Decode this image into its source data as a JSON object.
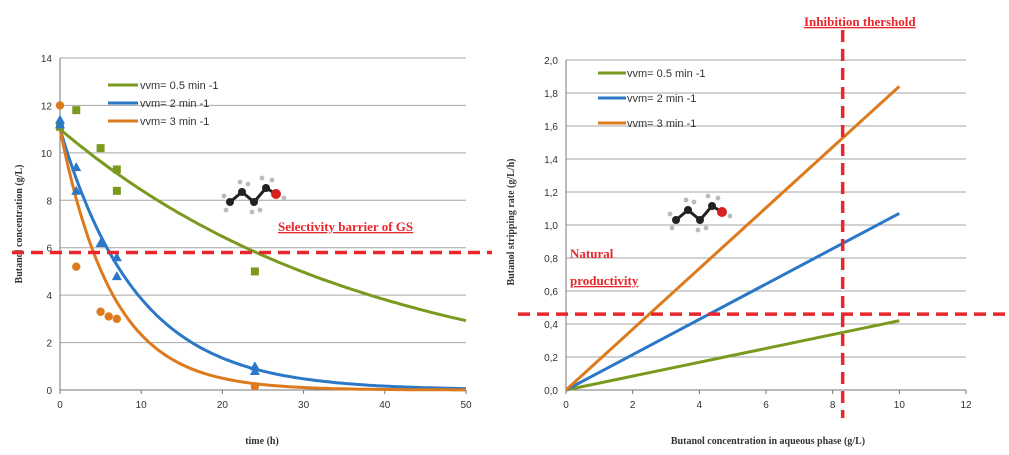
{
  "colors": {
    "series_0_5": "#7a9a1f",
    "series_2": "#2b78c8",
    "series_3": "#dd7a1d",
    "threshold": "#e8262c",
    "grid": "#a6a6a6"
  },
  "annotations": {
    "inhibition": "Inhibition thershold",
    "selectivity": "Selectivity barrier of GS",
    "natural_line1": "Natural",
    "natural_line2": "productivity"
  },
  "chart_data": [
    {
      "type": "scatter",
      "xlabel": "time (h)",
      "ylabel": "Butanol concentration (g/L)",
      "xlim": [
        0,
        50
      ],
      "ylim": [
        0,
        14
      ],
      "xticks": [
        0,
        10,
        20,
        30,
        40,
        50
      ],
      "yticks": [
        0,
        2,
        4,
        6,
        8,
        10,
        12,
        14
      ],
      "grid": "horizontal",
      "legend": "top-left",
      "threshold_y": 5.8,
      "series": [
        {
          "name": "vvm= 0.5 min -1",
          "color_key": "series_0_5",
          "marker": "square",
          "points": [
            [
              0,
              11.1
            ],
            [
              2,
              11.8
            ],
            [
              5,
              10.2
            ],
            [
              7,
              9.3
            ],
            [
              7,
              8.4
            ],
            [
              24,
              5.0
            ]
          ],
          "fit": {
            "y0": 11.0,
            "k": 0.0265
          }
        },
        {
          "name": "vvm= 2 min -1",
          "color_key": "series_2",
          "marker": "triangle",
          "points": [
            [
              0,
              11.4
            ],
            [
              0,
              11.2
            ],
            [
              2,
              9.4
            ],
            [
              2,
              8.4
            ],
            [
              5,
              6.2
            ],
            [
              7,
              5.6
            ],
            [
              7,
              4.8
            ],
            [
              24,
              1.0
            ],
            [
              24,
              0.8
            ]
          ],
          "fit": {
            "y0": 11.0,
            "k": 0.105
          }
        },
        {
          "name": "vvm= 3 min -1",
          "color_key": "series_3",
          "marker": "circle",
          "points": [
            [
              0,
              12.0
            ],
            [
              2,
              5.2
            ],
            [
              5,
              3.3
            ],
            [
              6,
              3.1
            ],
            [
              7,
              3.0
            ],
            [
              24,
              0.15
            ]
          ],
          "fit": {
            "y0": 11.0,
            "k": 0.155
          }
        }
      ]
    },
    {
      "type": "line",
      "xlabel": "Butanol concentration in aqueous phase (g/L)",
      "ylabel": "Butanol stripping rate (g/L/h)",
      "xlim": [
        0,
        12
      ],
      "ylim": [
        0,
        2.0
      ],
      "xticks": [
        0,
        2,
        4,
        6,
        8,
        10,
        12
      ],
      "yticks": [
        "0,0",
        "0,2",
        "0,4",
        "0,6",
        "0,8",
        "1,0",
        "1,2",
        "1,4",
        "1,6",
        "1,8",
        "2,0"
      ],
      "grid": "horizontal",
      "legend": "top-left",
      "threshold_x": 8.3,
      "threshold_y": 0.46,
      "series": [
        {
          "name": "vvm= 0.5 min -1",
          "color_key": "series_0_5",
          "x": [
            0,
            10
          ],
          "y": [
            0,
            0.42
          ]
        },
        {
          "name": "vvm= 2 min -1",
          "color_key": "series_2",
          "x": [
            0,
            10
          ],
          "y": [
            0,
            1.07
          ]
        },
        {
          "name": "vvm= 3 min -1",
          "color_key": "series_3",
          "x": [
            0,
            10
          ],
          "y": [
            0,
            1.84
          ]
        }
      ]
    }
  ]
}
